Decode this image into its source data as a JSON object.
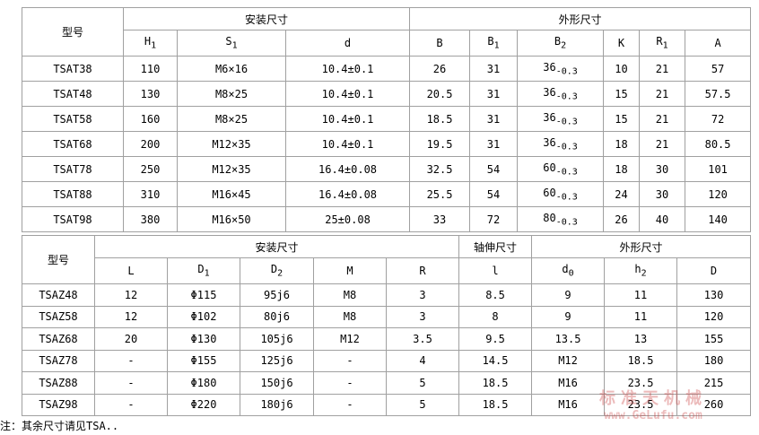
{
  "table1": {
    "header_groups": [
      "型号",
      "安装尺寸",
      "外形尺寸"
    ],
    "columns": [
      {
        "text": "H",
        "sub": "1"
      },
      {
        "text": "S",
        "sub": "1"
      },
      "d",
      "B",
      {
        "text": "B",
        "sub": "1"
      },
      {
        "text": "B",
        "sub": "2"
      },
      "K",
      {
        "text": "R",
        "sub": "1"
      },
      "A"
    ],
    "rows": [
      [
        "TSAT38",
        "110",
        "M6×16",
        "10.4±0.1",
        "26",
        "31",
        {
          "text": "36",
          "sub": "-0.3"
        },
        "10",
        "21",
        "57"
      ],
      [
        "TSAT48",
        "130",
        "M8×25",
        "10.4±0.1",
        "20.5",
        "31",
        {
          "text": "36",
          "sub": "-0.3"
        },
        "15",
        "21",
        "57.5"
      ],
      [
        "TSAT58",
        "160",
        "M8×25",
        "10.4±0.1",
        "18.5",
        "31",
        {
          "text": "36",
          "sub": "-0.3"
        },
        "15",
        "21",
        "72"
      ],
      [
        "TSAT68",
        "200",
        "M12×35",
        "10.4±0.1",
        "19.5",
        "31",
        {
          "text": "36",
          "sub": "-0.3"
        },
        "18",
        "21",
        "80.5"
      ],
      [
        "TSAT78",
        "250",
        "M12×35",
        "16.4±0.08",
        "32.5",
        "54",
        {
          "text": "60",
          "sub": "-0.3"
        },
        "18",
        "30",
        "101"
      ],
      [
        "TSAT88",
        "310",
        "M16×45",
        "16.4±0.08",
        "25.5",
        "54",
        {
          "text": "60",
          "sub": "-0.3"
        },
        "24",
        "30",
        "120"
      ],
      [
        "TSAT98",
        "380",
        "M16×50",
        "25±0.08",
        "33",
        "72",
        {
          "text": "80",
          "sub": "-0.3"
        },
        "26",
        "40",
        "140"
      ]
    ]
  },
  "table2": {
    "header_groups": [
      "型号",
      "安装尺寸",
      "轴伸尺寸",
      "外形尺寸"
    ],
    "columns": [
      "L",
      {
        "text": "D",
        "sub": "1"
      },
      {
        "text": "D",
        "sub": "2"
      },
      "M",
      "R",
      "l",
      {
        "text": "d",
        "sub": "0"
      },
      {
        "text": "h",
        "sub": "2"
      },
      "D"
    ],
    "rows": [
      [
        "TSAZ48",
        "12",
        "Φ115",
        "95j6",
        "M8",
        "3",
        "8.5",
        "9",
        "11",
        "130"
      ],
      [
        "TSAZ58",
        "12",
        "Φ102",
        "80j6",
        "M8",
        "3",
        "8",
        "9",
        "11",
        "120"
      ],
      [
        "TSAZ68",
        "20",
        "Φ130",
        "105j6",
        "M12",
        "3.5",
        "9.5",
        "13.5",
        "13",
        "155"
      ],
      [
        "TSAZ78",
        "-",
        "Φ155",
        "125j6",
        "-",
        "4",
        "14.5",
        "M12",
        "18.5",
        "180"
      ],
      [
        "TSAZ88",
        "-",
        "Φ180",
        "150j6",
        "-",
        "5",
        "18.5",
        "M16",
        "23.5",
        "215"
      ],
      [
        "TSAZ98",
        "-",
        "Φ220",
        "180j6",
        "-",
        "5",
        "18.5",
        "M16",
        "23.5",
        "260"
      ]
    ]
  },
  "footnote": "注：其余尺寸请见TSA..",
  "watermark": {
    "brand": "标准天机械",
    "url": "www.GeLufu.com"
  }
}
